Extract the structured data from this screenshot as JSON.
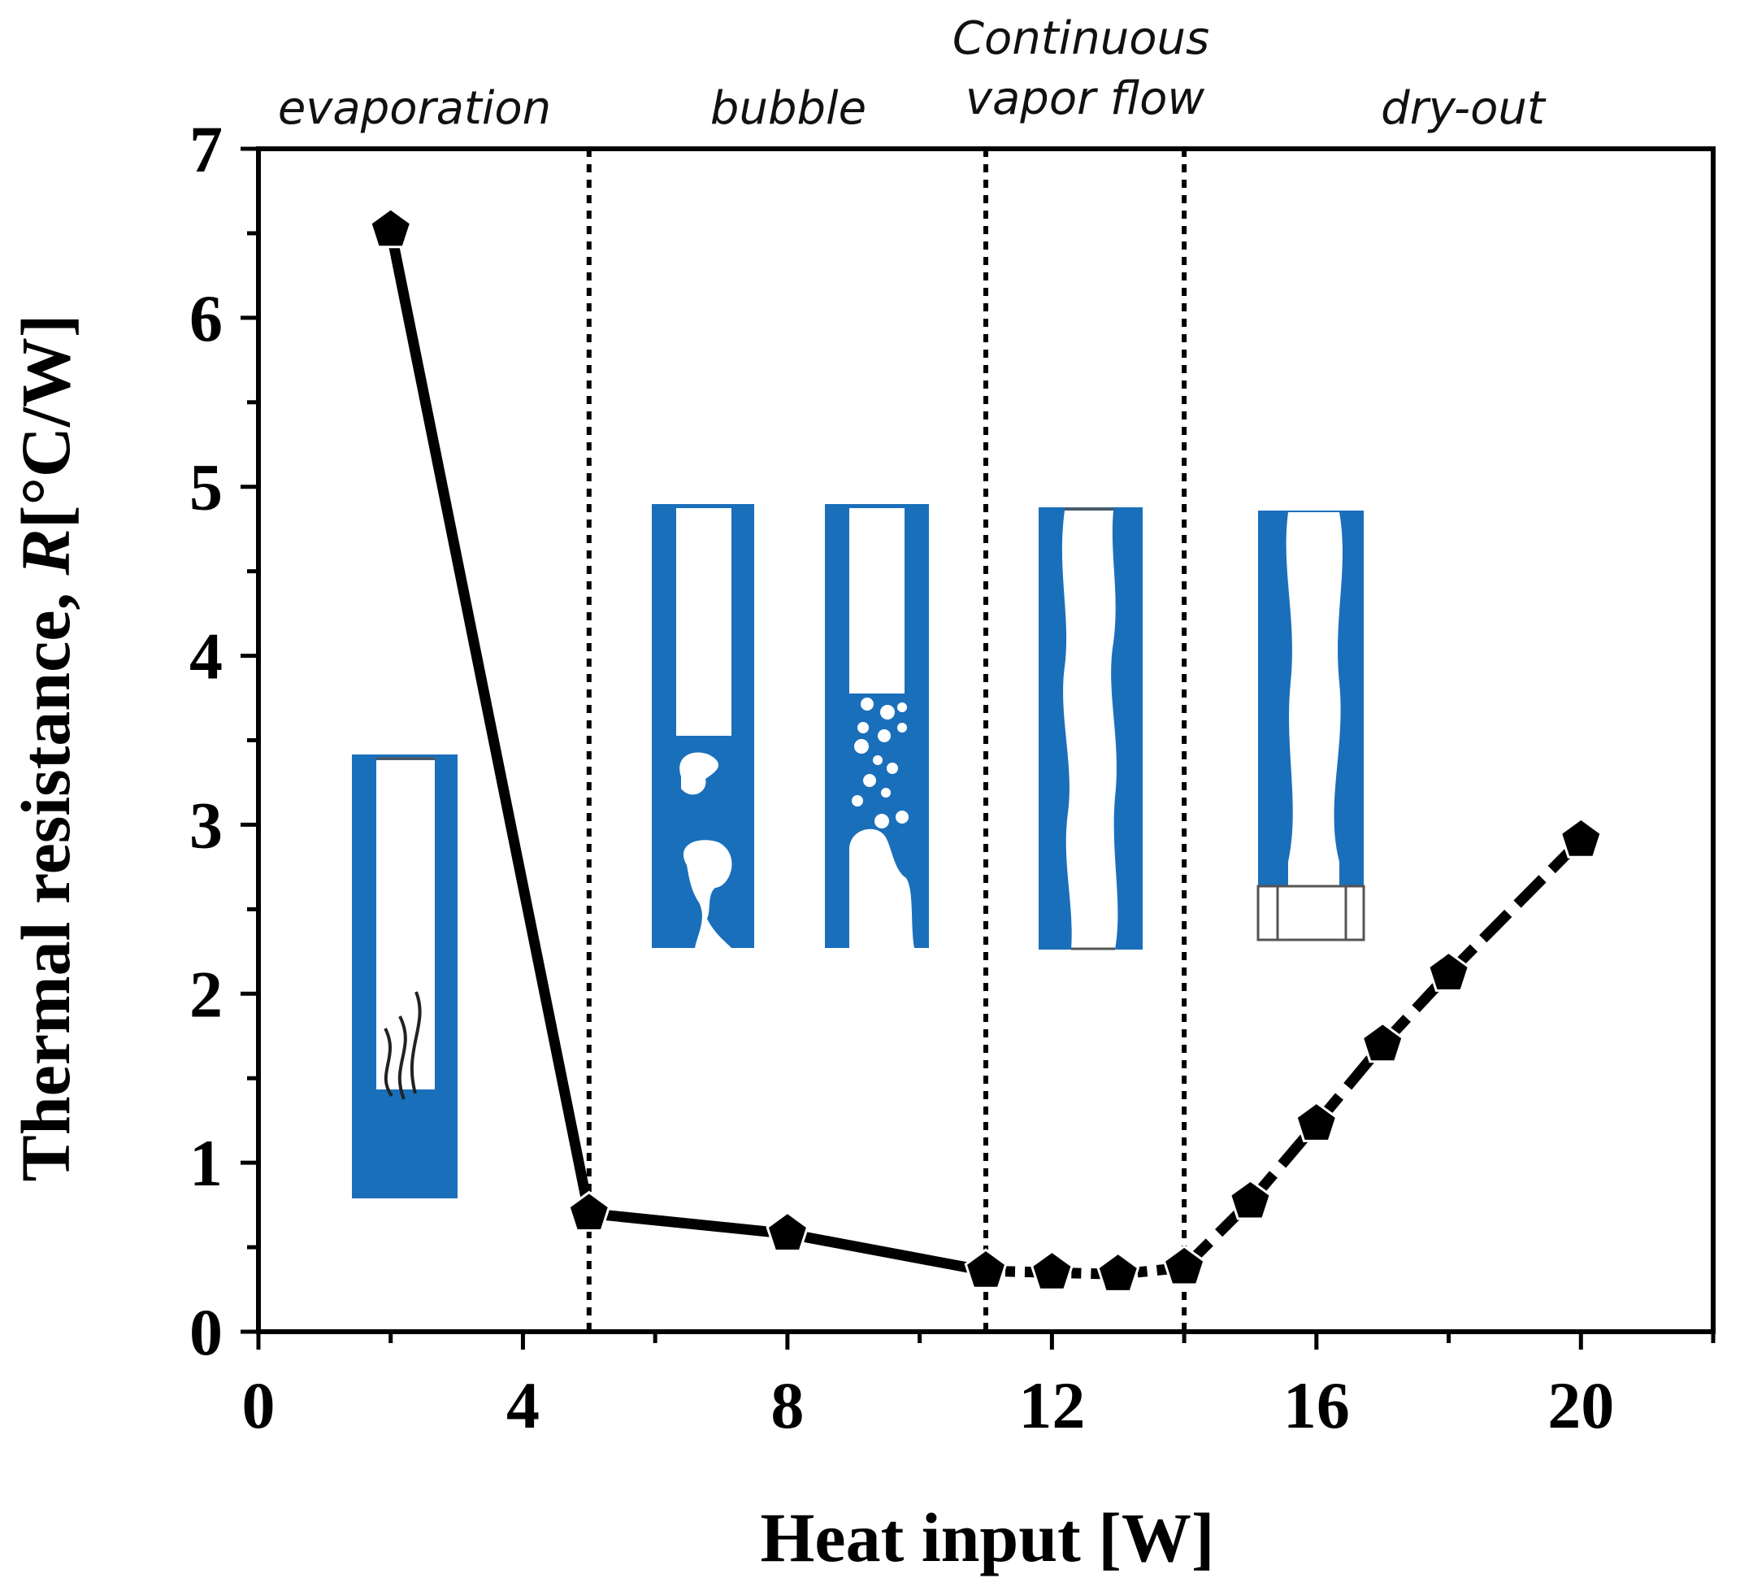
{
  "chart_data": {
    "type": "line",
    "title": "",
    "xlabel": "Heat input [W]",
    "ylabel_prefix": "Thermal resistance, ",
    "ylabel_symbol": "R",
    "ylabel_unit": "[°C/W]",
    "xlim": [
      0,
      22
    ],
    "ylim": [
      0,
      7
    ],
    "x_ticks": [
      0,
      4,
      8,
      12,
      16,
      20
    ],
    "y_ticks": [
      0,
      1,
      2,
      3,
      4,
      5,
      6,
      7
    ],
    "marker": "pentagon",
    "color": "#000000",
    "series": [
      {
        "name": "Thermal resistance",
        "x": [
          2,
          5,
          8,
          11,
          12,
          13,
          14,
          15,
          16,
          17,
          18,
          20
        ],
        "y": [
          6.52,
          0.7,
          0.58,
          0.36,
          0.35,
          0.34,
          0.38,
          0.77,
          1.23,
          1.7,
          2.12,
          2.91
        ]
      }
    ],
    "segment_styles": [
      {
        "from_x": 2,
        "to_x": 11,
        "style": "solid"
      },
      {
        "from_x": 11,
        "to_x": 14,
        "style": "dotted"
      },
      {
        "from_x": 14,
        "to_x": 20,
        "style": "dashed"
      }
    ],
    "regime_boundaries": [
      5,
      11,
      14
    ],
    "regimes": [
      {
        "name": "evaporation",
        "lines": [
          "evaporation"
        ]
      },
      {
        "name": "bubble",
        "lines": [
          "bubble"
        ]
      },
      {
        "name": "continuous-vapor-flow",
        "lines": [
          "Continuous",
          "vapor flow"
        ]
      },
      {
        "name": "dry-out",
        "lines": [
          "dry-out"
        ]
      }
    ],
    "illustration_color": "#1a6fba"
  }
}
